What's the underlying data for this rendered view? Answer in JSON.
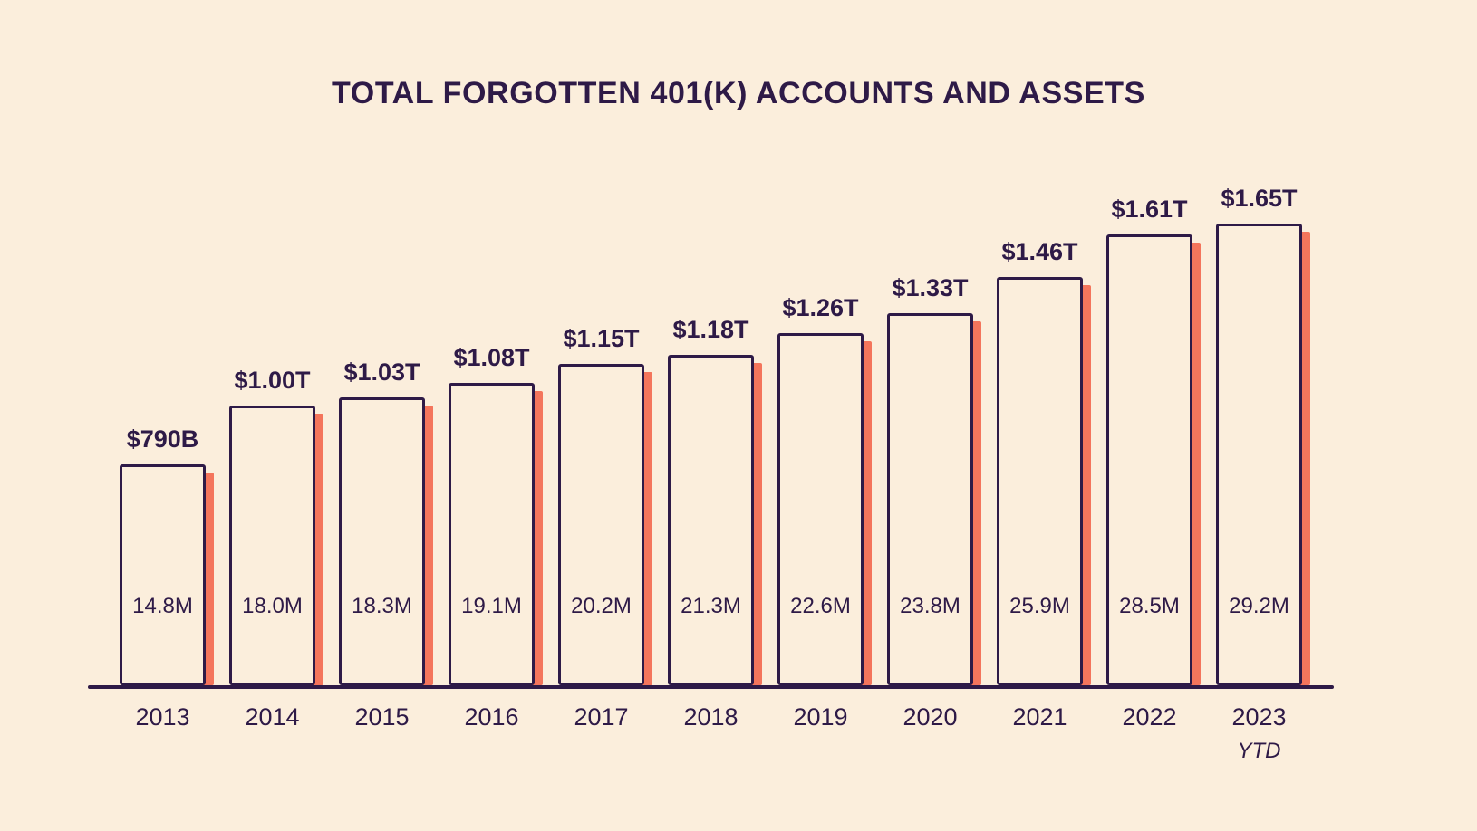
{
  "colors": {
    "background": "#FBEEDC",
    "ink": "#2E1A47",
    "coral": "#F4755C"
  },
  "chart_data": {
    "type": "bar",
    "title": "TOTAL FORGOTTEN 401(K) ACCOUNTS AND ASSETS",
    "categories": [
      "2013",
      "2014",
      "2015",
      "2016",
      "2017",
      "2018",
      "2019",
      "2020",
      "2021",
      "2022",
      "2023"
    ],
    "x_sublabels": [
      "",
      "",
      "",
      "",
      "",
      "",
      "",
      "",
      "",
      "",
      "YTD"
    ],
    "series": [
      {
        "name": "assets",
        "labels": [
          "$790B",
          "$1.00T",
          "$1.03T",
          "$1.08T",
          "$1.15T",
          "$1.18T",
          "$1.26T",
          "$1.33T",
          "$1.46T",
          "$1.61T",
          "$1.65T"
        ],
        "values_trillions": [
          0.79,
          1.0,
          1.03,
          1.08,
          1.15,
          1.18,
          1.26,
          1.33,
          1.46,
          1.61,
          1.65
        ]
      },
      {
        "name": "accounts",
        "labels": [
          "14.8M",
          "18.0M",
          "18.3M",
          "19.1M",
          "20.2M",
          "21.3M",
          "22.6M",
          "23.8M",
          "25.9M",
          "28.5M",
          "29.2M"
        ],
        "values_millions": [
          14.8,
          18.0,
          18.3,
          19.1,
          20.2,
          21.3,
          22.6,
          23.8,
          25.9,
          28.5,
          29.2
        ]
      }
    ],
    "xlabel": "",
    "ylabel": "",
    "ylim": [
      0,
      1.65
    ],
    "grid": false,
    "legend": "none"
  }
}
